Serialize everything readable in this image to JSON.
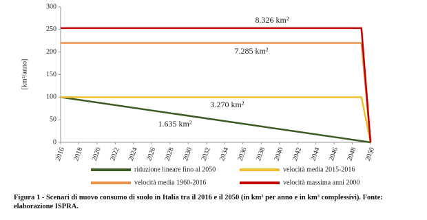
{
  "chart_data": {
    "type": "line",
    "y_label": "[km²/anno]",
    "x": [
      2016,
      2049,
      2050
    ],
    "xlim": [
      2016,
      2050
    ],
    "xticks": [
      2016,
      2018,
      2020,
      2022,
      2024,
      2026,
      2028,
      2030,
      2032,
      2034,
      2036,
      2038,
      2040,
      2042,
      2044,
      2046,
      2048,
      2050
    ],
    "ylim": [
      0,
      300
    ],
    "yticks": [
      0,
      50,
      100,
      150,
      200,
      250,
      300
    ],
    "grid": false,
    "series": [
      {
        "name": "riduzione lineare fino al 2050",
        "color": "#3b5a22",
        "values": [
          100,
          2.9,
          0
        ]
      },
      {
        "name": "velocità media 2015-2016",
        "color": "#f0c030",
        "values": [
          100,
          100,
          0
        ]
      },
      {
        "name": "velocità media 1960-2016",
        "color": "#e8914b",
        "values": [
          220,
          220,
          0
        ]
      },
      {
        "name": "velocità massima anni 2000",
        "color": "#c00000",
        "values": [
          253,
          253,
          0
        ]
      }
    ],
    "annotations": [
      "8.326 km²",
      "7.285 km²",
      "3.270 km²",
      "1.635 km²"
    ],
    "caption": "Figura 1 - Scenari di nuovo consumo di suolo in Italia tra il 2016 e il 2050 (in km² per anno e in km² complessivi). Fonte: elaborazione ISPRA."
  }
}
